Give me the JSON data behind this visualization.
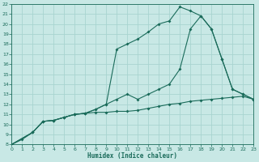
{
  "xlabel": "Humidex (Indice chaleur)",
  "bg_color": "#c8e8e5",
  "grid_color": "#a8d4d0",
  "line_color": "#1a6b5a",
  "xlim": [
    0,
    23
  ],
  "ylim": [
    8,
    22
  ],
  "xticks": [
    0,
    1,
    2,
    3,
    4,
    5,
    6,
    7,
    8,
    9,
    10,
    11,
    12,
    13,
    14,
    15,
    16,
    17,
    18,
    19,
    20,
    21,
    22,
    23
  ],
  "yticks": [
    8,
    9,
    10,
    11,
    12,
    13,
    14,
    15,
    16,
    17,
    18,
    19,
    20,
    21,
    22
  ],
  "line1_x": [
    0,
    1,
    2,
    3,
    4,
    5,
    6,
    7,
    8,
    9,
    10,
    11,
    12,
    13,
    14,
    15,
    16,
    17,
    18,
    19,
    20,
    21,
    22,
    23
  ],
  "line1_y": [
    8.0,
    8.5,
    9.2,
    10.3,
    10.4,
    10.7,
    11.0,
    11.1,
    11.2,
    11.2,
    11.3,
    11.3,
    11.4,
    11.6,
    11.8,
    12.0,
    12.1,
    12.3,
    12.4,
    12.5,
    12.6,
    12.7,
    12.8,
    12.5
  ],
  "line2_x": [
    0,
    2,
    3,
    4,
    5,
    6,
    7,
    8,
    9,
    10,
    11,
    12,
    13,
    14,
    15,
    16,
    17,
    18,
    19,
    20,
    21,
    22,
    23
  ],
  "line2_y": [
    8.0,
    9.2,
    10.3,
    10.4,
    10.7,
    11.0,
    11.1,
    11.5,
    12.0,
    12.5,
    13.0,
    12.5,
    13.0,
    13.5,
    14.0,
    15.5,
    19.5,
    20.8,
    19.5,
    16.5,
    13.5,
    13.0,
    12.5
  ],
  "line3_x": [
    0,
    2,
    3,
    4,
    5,
    6,
    7,
    8,
    9,
    10,
    11,
    12,
    13,
    14,
    15,
    16,
    17,
    18,
    19,
    20,
    21,
    22,
    23
  ],
  "line3_y": [
    8.0,
    9.2,
    10.3,
    10.4,
    10.7,
    11.0,
    11.1,
    11.5,
    12.0,
    17.5,
    18.0,
    18.5,
    19.2,
    20.0,
    20.3,
    21.7,
    21.3,
    20.8,
    19.5,
    16.5,
    13.5,
    13.0,
    12.5
  ]
}
